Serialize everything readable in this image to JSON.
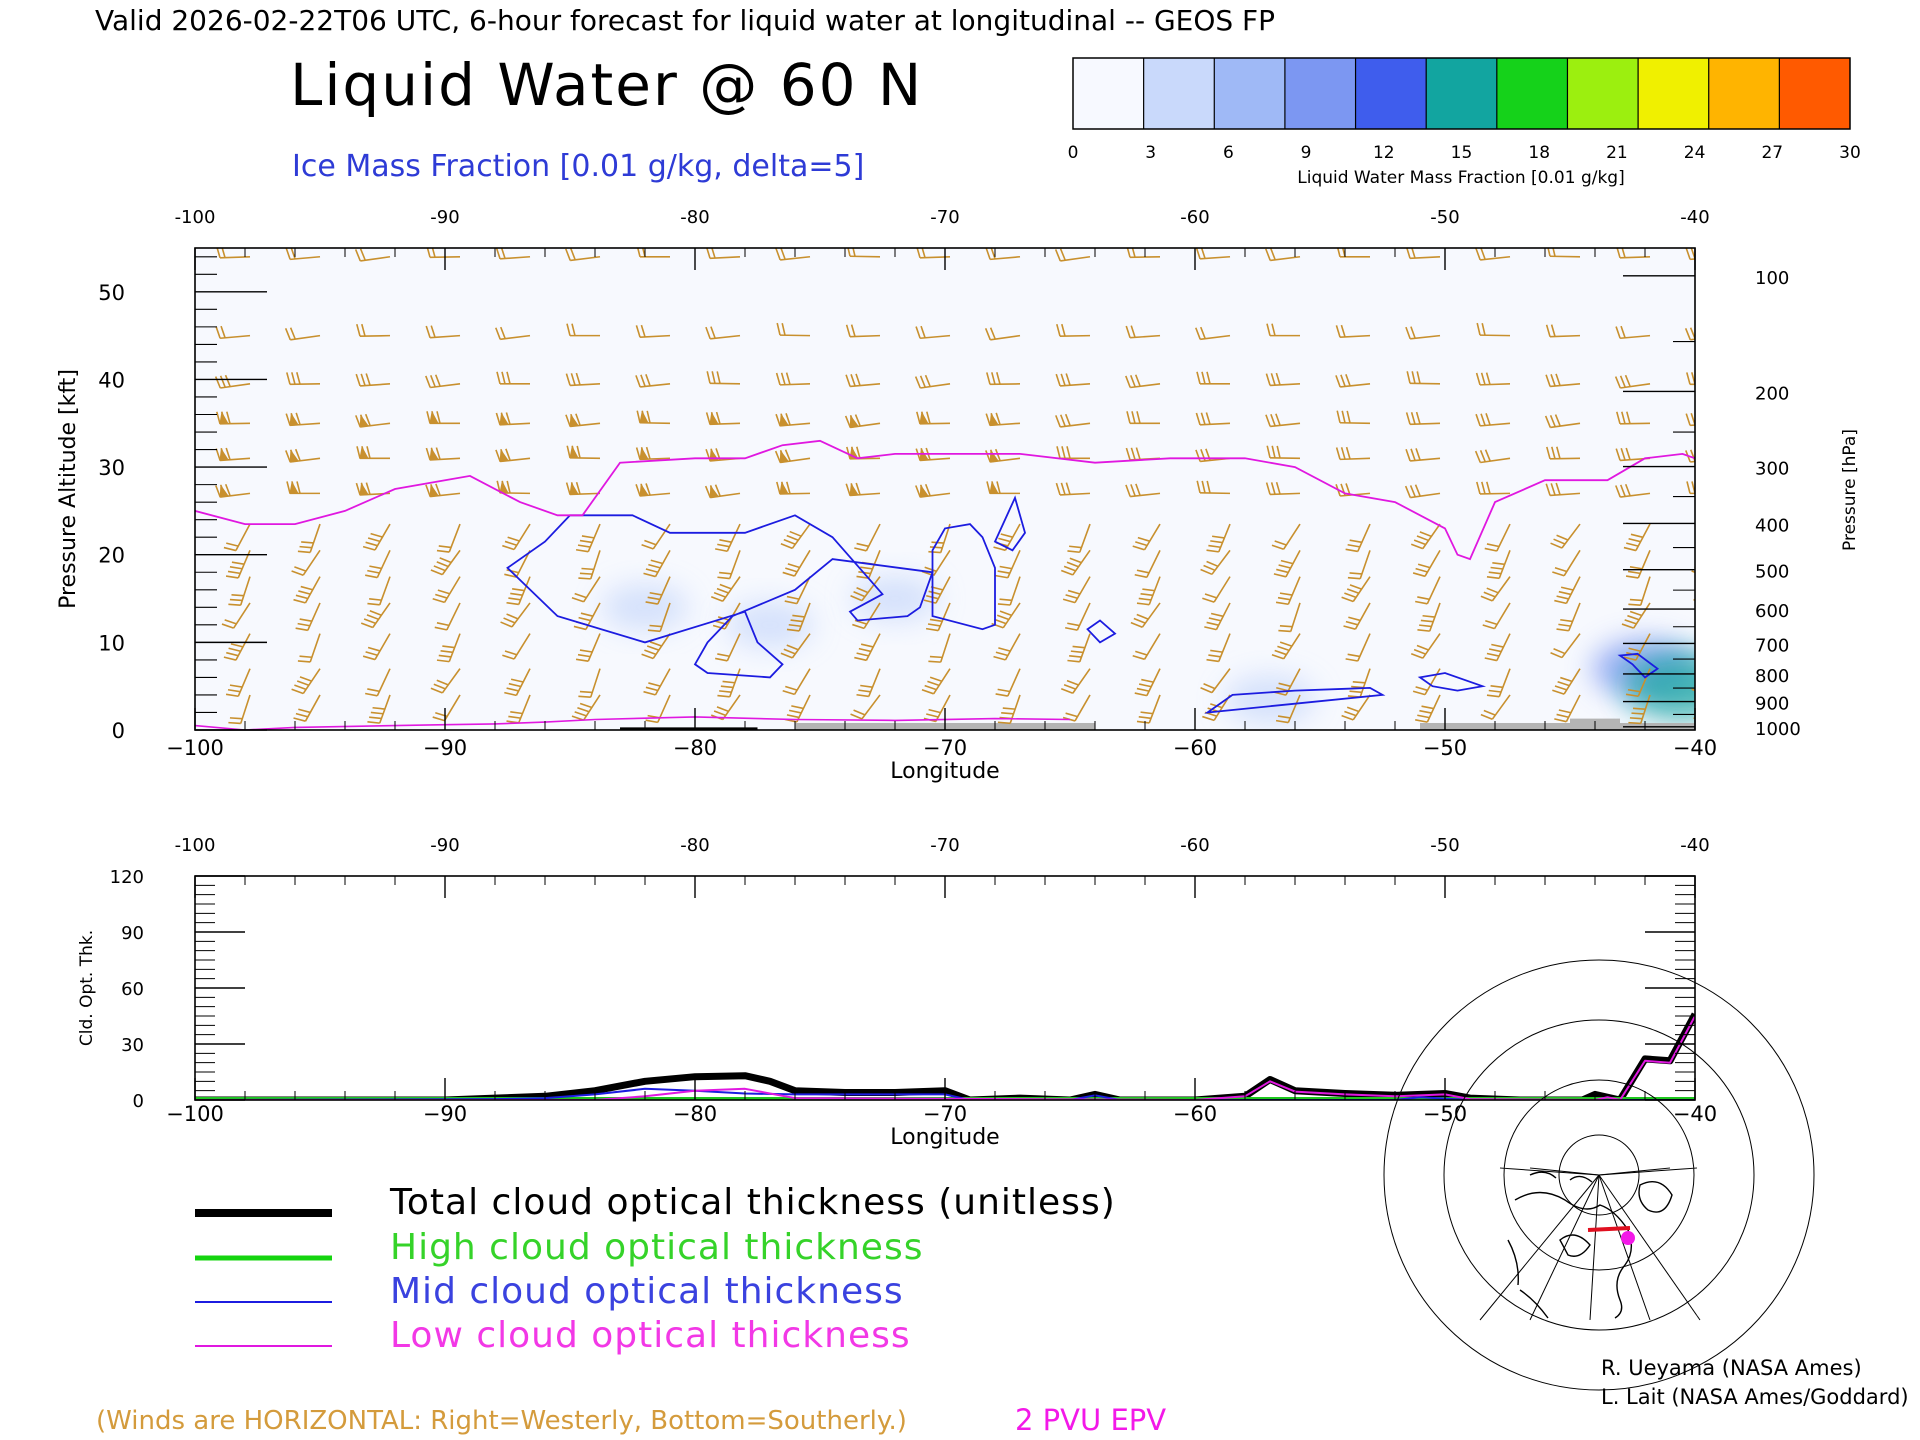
{
  "header": {
    "valid_line": "Valid 2026-02-22T06 UTC, 6-hour forecast for liquid water at longitudinal -- GEOS FP",
    "title": "Liquid Water @ 60 N",
    "subtitle": "Ice Mass Fraction [0.01 g/kg, delta=5]"
  },
  "colorbar": {
    "label": "Liquid Water Mass Fraction [0.01 g/kg]",
    "ticks": [
      "0",
      "3",
      "6",
      "9",
      "12",
      "15",
      "18",
      "21",
      "24",
      "27",
      "30"
    ],
    "colors": [
      "#f7f9ff",
      "#c9d9fb",
      "#9fb9f6",
      "#7c97f2",
      "#3f5ded",
      "#12a5a0",
      "#15d21a",
      "#9cef0f",
      "#f0f000",
      "#ffb400",
      "#ff5a00"
    ]
  },
  "chart_data": [
    {
      "type": "heatmap",
      "name": "Liquid water cross-section",
      "x_range": [
        -100,
        -40
      ],
      "xlabel": "Longitude",
      "ylabel_left": "Pressure Altitude [kft]",
      "ylabel_right": "Pressure [hPa]",
      "ylim": [
        0,
        55
      ],
      "top_ticks": [
        "-100",
        "-90",
        "-80",
        "-70",
        "-60",
        "-50",
        "-40"
      ],
      "bottom_ticks": [
        "−100",
        "−90",
        "−80",
        "−70",
        "−60",
        "−50",
        "−40"
      ],
      "y_ticks": [
        "0",
        "10",
        "20",
        "30",
        "40",
        "50"
      ],
      "pressure_ticks": [
        "100",
        "200",
        "300",
        "400",
        "500",
        "600",
        "700",
        "800",
        "900",
        "1000"
      ],
      "pressure_levels": [
        100,
        200,
        300,
        400,
        500,
        600,
        700,
        800,
        900,
        1000
      ],
      "liquid_water_blobs": [
        {
          "lon": -82,
          "alt": 14,
          "value": 1.5
        },
        {
          "lon": -77,
          "alt": 12,
          "value": 1.5
        },
        {
          "lon": -72,
          "alt": 15,
          "value": 1
        },
        {
          "lon": -57,
          "alt": 3.5,
          "value": 3
        },
        {
          "lon": -42,
          "alt": 7,
          "value": 9
        },
        {
          "lon": -40.5,
          "alt": 5,
          "value": 14
        }
      ],
      "ice_contours": [
        {
          "value": 5,
          "points": [
            [
              -87.5,
              18.5
            ],
            [
              -86,
              21.5
            ],
            [
              -85,
              24.5
            ],
            [
              -82.5,
              24.5
            ],
            [
              -81,
              22.5
            ],
            [
              -78,
              22.5
            ],
            [
              -76,
              24.5
            ],
            [
              -74.5,
              22
            ],
            [
              -72.5,
              15.5
            ],
            [
              -73.8,
              13.5
            ],
            [
              -73.5,
              12.5
            ],
            [
              -71.5,
              13
            ],
            [
              -71,
              14
            ],
            [
              -70.5,
              18
            ],
            [
              -74.5,
              19.5
            ],
            [
              -76,
              16
            ],
            [
              -78.5,
              13
            ],
            [
              -79.5,
              10
            ],
            [
              -80,
              7.5
            ],
            [
              -79.5,
              6.5
            ],
            [
              -77,
              6
            ],
            [
              -76.5,
              7.5
            ],
            [
              -77.5,
              10
            ],
            [
              -78,
              13.5
            ],
            [
              -82,
              10
            ],
            [
              -85.5,
              13
            ],
            [
              -87.5,
              18.5
            ]
          ]
        },
        {
          "value": 5,
          "points": [
            [
              -70.5,
              20.5
            ],
            [
              -70,
              23
            ],
            [
              -69,
              23.5
            ],
            [
              -68.5,
              22
            ],
            [
              -68,
              18.5
            ],
            [
              -68,
              12
            ],
            [
              -68.5,
              11.5
            ],
            [
              -70.5,
              13
            ],
            [
              -70.5,
              20.5
            ]
          ]
        },
        {
          "value": 5,
          "points": [
            [
              -68,
              21.5
            ],
            [
              -67.6,
              24
            ],
            [
              -67.2,
              26.5
            ],
            [
              -66.8,
              22.5
            ],
            [
              -67.3,
              20.5
            ],
            [
              -68,
              21.5
            ]
          ]
        },
        {
          "value": 5,
          "points": [
            [
              -64.3,
              11.5
            ],
            [
              -63.8,
              12.5
            ],
            [
              -63.2,
              11
            ],
            [
              -63.8,
              10
            ],
            [
              -64.3,
              11.5
            ]
          ]
        },
        {
          "value": 5,
          "points": [
            [
              -59.5,
              2
            ],
            [
              -58.5,
              4
            ],
            [
              -56,
              4.5
            ],
            [
              -54,
              4.7
            ],
            [
              -53,
              4.8
            ],
            [
              -52.5,
              4
            ],
            [
              -56,
              3
            ],
            [
              -59.5,
              2
            ]
          ]
        },
        {
          "value": 5,
          "points": [
            [
              -51,
              6
            ],
            [
              -50.5,
              5
            ],
            [
              -49.5,
              4.5
            ],
            [
              -48.5,
              5
            ],
            [
              -50,
              6.5
            ],
            [
              -51,
              6
            ]
          ]
        },
        {
          "value": 5,
          "points": [
            [
              -43,
              8.5
            ],
            [
              -42.3,
              8.7
            ],
            [
              -41.5,
              7
            ],
            [
              -42,
              6
            ],
            [
              -42.5,
              7.5
            ],
            [
              -43,
              8.5
            ]
          ]
        }
      ],
      "pv_2pvu": [
        [
          -100,
          25
        ],
        [
          -98,
          23.5
        ],
        [
          -96,
          23.5
        ],
        [
          -94,
          25
        ],
        [
          -92,
          27.5
        ],
        [
          -90,
          28.5
        ],
        [
          -89,
          29
        ],
        [
          -87,
          26
        ],
        [
          -85.5,
          24.5
        ],
        [
          -84.5,
          24.5
        ],
        [
          -83,
          30.5
        ],
        [
          -80,
          31
        ],
        [
          -78,
          31
        ],
        [
          -76.5,
          32.5
        ],
        [
          -75,
          33
        ],
        [
          -73.5,
          31
        ],
        [
          -72,
          31.5
        ],
        [
          -70,
          31.5
        ],
        [
          -67,
          31.5
        ],
        [
          -64,
          30.5
        ],
        [
          -61,
          31
        ],
        [
          -58,
          31
        ],
        [
          -56,
          30
        ],
        [
          -54,
          27
        ],
        [
          -52,
          26
        ],
        [
          -50,
          23
        ],
        [
          -49.5,
          20
        ],
        [
          -49,
          19.5
        ],
        [
          -48,
          26
        ],
        [
          -46,
          28.5
        ],
        [
          -43.5,
          28.5
        ],
        [
          -42,
          31
        ],
        [
          -40.5,
          31.5
        ],
        [
          -40,
          31
        ]
      ],
      "surface_shading": [
        [
          -76,
          -64,
          0.8
        ],
        [
          -51,
          -40,
          0.8
        ],
        [
          -45,
          -43,
          1.3
        ]
      ],
      "surface_black": [
        [
          -83,
          -77.5,
          0.3
        ]
      ],
      "low_pv_surface": [
        [
          -100,
          0.5
        ],
        [
          -98,
          0
        ],
        [
          -96,
          0.3
        ],
        [
          -90,
          0.6
        ],
        [
          -88,
          0.7
        ],
        [
          -86,
          0.9
        ],
        [
          -84,
          1.2
        ],
        [
          -80,
          1.5
        ],
        [
          -76,
          1.2
        ],
        [
          -72,
          1.1
        ],
        [
          -68,
          1.3
        ],
        [
          -65,
          1.2
        ]
      ],
      "wind_levels_kft": [
        4,
        7,
        11,
        14.5,
        17.5,
        20.5,
        23.5,
        27,
        31,
        35,
        39.5,
        45,
        54
      ],
      "wind_lons": [
        -99,
        -96.2,
        -93.4,
        -90.6,
        -87.8,
        -85,
        -82.2,
        -79.4,
        -76.6,
        -73.8,
        -71,
        -68.2,
        -65.4,
        -62.6,
        -59.8,
        -57,
        -54.2,
        -51.4,
        -48.6,
        -45.8,
        -43,
        -40.2
      ]
    },
    {
      "type": "line",
      "name": "Cloud optical thickness",
      "x_range": [
        -100,
        -40
      ],
      "xlabel": "Longitude",
      "ylabel": "Cld. Opt. Thk.",
      "ylim": [
        0,
        120
      ],
      "top_ticks": [
        "-100",
        "-90",
        "-80",
        "-70",
        "-60",
        "-50",
        "-40"
      ],
      "bottom_ticks": [
        "−100",
        "−90",
        "−80",
        "−70",
        "−60",
        "−50",
        "−40"
      ],
      "y_ticks": [
        "0",
        "30",
        "60",
        "90",
        "120"
      ],
      "series": [
        {
          "name": "Total cloud optical thickness (unitless)",
          "color": "#000000",
          "points": [
            [
              -100,
              0
            ],
            [
              -90,
              0
            ],
            [
              -88,
              1
            ],
            [
              -86,
              2
            ],
            [
              -84,
              5
            ],
            [
              -82,
              10
            ],
            [
              -80,
              12.5
            ],
            [
              -78,
              13
            ],
            [
              -77,
              10
            ],
            [
              -76,
              5
            ],
            [
              -74,
              4
            ],
            [
              -72,
              4
            ],
            [
              -70,
              5
            ],
            [
              -69,
              0
            ],
            [
              -67,
              1
            ],
            [
              -65,
              0
            ],
            [
              -64,
              3
            ],
            [
              -63,
              0
            ],
            [
              -60,
              0
            ],
            [
              -58,
              2
            ],
            [
              -57,
              11
            ],
            [
              -56,
              5
            ],
            [
              -54,
              3.5
            ],
            [
              -52,
              2.5
            ],
            [
              -50,
              3.5
            ],
            [
              -49,
              1
            ],
            [
              -47,
              0
            ],
            [
              -44.5,
              0
            ],
            [
              -44,
              3
            ],
            [
              -43,
              0
            ],
            [
              -42,
              22
            ],
            [
              -41,
              21
            ],
            [
              -40,
              46
            ]
          ]
        },
        {
          "name": "High cloud optical thickness",
          "color": "#1ec71e",
          "points": [
            [
              -100,
              0
            ],
            [
              -40,
              0
            ]
          ]
        },
        {
          "name": "Mid cloud optical thickness",
          "color": "#1c1ce0",
          "points": [
            [
              -100,
              0
            ],
            [
              -88,
              0.5
            ],
            [
              -86,
              1
            ],
            [
              -84,
              3
            ],
            [
              -82,
              6
            ],
            [
              -80,
              5
            ],
            [
              -78,
              3.5
            ],
            [
              -76,
              3
            ],
            [
              -72,
              3
            ],
            [
              -70,
              3
            ],
            [
              -69,
              0
            ],
            [
              -65,
              0
            ],
            [
              -64,
              2.5
            ],
            [
              -63,
              0
            ],
            [
              -52,
              0
            ],
            [
              -51,
              1.5
            ],
            [
              -49,
              0
            ],
            [
              -40,
              0
            ]
          ]
        },
        {
          "name": "Low cloud optical thickness",
          "color": "#e018e0",
          "points": [
            [
              -100,
              0
            ],
            [
              -84,
              0
            ],
            [
              -82,
              2
            ],
            [
              -80,
              5
            ],
            [
              -78,
              6
            ],
            [
              -76,
              1
            ],
            [
              -60,
              0
            ],
            [
              -58,
              2
            ],
            [
              -57,
              10
            ],
            [
              -56,
              4.5
            ],
            [
              -54,
              3
            ],
            [
              -52,
              2
            ],
            [
              -50,
              3
            ],
            [
              -49,
              0.5
            ],
            [
              -44,
              0
            ],
            [
              -43.5,
              1.5
            ],
            [
              -43,
              0
            ],
            [
              -42,
              21
            ],
            [
              -41,
              20
            ],
            [
              -40,
              45
            ]
          ]
        }
      ]
    }
  ],
  "legend": {
    "items": [
      {
        "label": "Total cloud optical thickness (unitless)",
        "color": "#000000",
        "text_color": "#000000"
      },
      {
        "label": "High cloud optical thickness",
        "color": "#14d40f",
        "text_color": "#35d329"
      },
      {
        "label": "Mid cloud optical thickness",
        "color": "#1c1ce0",
        "text_color": "#3a42df"
      },
      {
        "label": "Low cloud optical thickness",
        "color": "#e018e0",
        "text_color": "#f238e6"
      }
    ]
  },
  "map_inset": {
    "marker_color": "#f318e8",
    "track_color": "#e01020"
  },
  "credits": [
    "R. Ueyama (NASA Ames)",
    "L. Lait (NASA Ames/Goddard)"
  ],
  "footer": {
    "winds_note": "(Winds are HORIZONTAL: Right=Westerly, Bottom=Southerly.)",
    "pvu_label": "2 PVU EPV"
  },
  "colors": {
    "wind": "#c8902e",
    "pv": "#e018e0",
    "ice": "#1c1ce0",
    "surface": "#b4b4b4"
  }
}
